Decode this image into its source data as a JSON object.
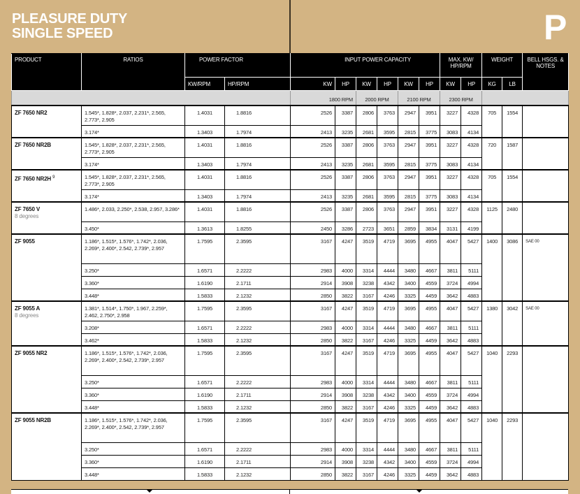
{
  "page": {
    "title_line1": "PLEASURE DUTY",
    "title_line2": "SINGLE SPEED",
    "section_letter": "P",
    "colors": {
      "background": "#d3b483",
      "header": "#000000",
      "rpm_band": "#d9d9d9"
    }
  },
  "table": {
    "headers": {
      "product": "PRODUCT",
      "ratios": "RATIOS",
      "power_factor": "POWER FACTOR",
      "input_power_capacity": "INPUT POWER CAPACITY",
      "max": "MAX. KW/ HP/RPM",
      "weight": "WEIGHT",
      "bell": "BELL HSGS. & NOTES",
      "kw_rpm": "KW/RPM",
      "hp_rpm": "HP/RPM",
      "kw": "KW",
      "hp": "HP",
      "kg": "KG",
      "lb": "LB"
    },
    "rpm_bands": [
      "1800 RPM",
      "2000 RPM",
      "2100 RPM",
      "2300 RPM"
    ],
    "products": [
      {
        "name": "ZF 7650 NR2",
        "sub": "",
        "sup": "",
        "kg": "705",
        "lb": "1554",
        "notes": "",
        "rows": [
          {
            "ratios": "1.545*, 1.828*, 2.037, 2.231*, 2.565, 2.773*, 2.905",
            "kw_rpm": "1.4031",
            "hp_rpm": "1.8816",
            "cap": [
              "2526",
              "3387",
              "2806",
              "3763",
              "2947",
              "3951",
              "3227",
              "4328"
            ]
          },
          {
            "ratios": "3.174*",
            "kw_rpm": "1.3403",
            "hp_rpm": "1.7974",
            "cap": [
              "2413",
              "3235",
              "2681",
              "3595",
              "2815",
              "3775",
              "3083",
              "4134"
            ]
          }
        ]
      },
      {
        "name": "ZF 7650 NR2B",
        "sub": "",
        "sup": "",
        "kg": "720",
        "lb": "1587",
        "notes": "",
        "rows": [
          {
            "ratios": "1.545*, 1.828*, 2.037, 2.231*, 2.565, 2.773*, 2.905",
            "kw_rpm": "1.4031",
            "hp_rpm": "1.8816",
            "cap": [
              "2526",
              "3387",
              "2806",
              "3763",
              "2947",
              "3951",
              "3227",
              "4328"
            ]
          },
          {
            "ratios": "3.174*",
            "kw_rpm": "1.3403",
            "hp_rpm": "1.7974",
            "cap": [
              "2413",
              "3235",
              "2681",
              "3595",
              "2815",
              "3775",
              "3083",
              "4134"
            ]
          }
        ]
      },
      {
        "name": "ZF 7650 NR2H",
        "sub": "",
        "sup": "9",
        "kg": "705",
        "lb": "1554",
        "notes": "",
        "rows": [
          {
            "ratios": "1.545*, 1.828*, 2.037, 2.231*, 2.565, 2.773*, 2.905",
            "kw_rpm": "1.4031",
            "hp_rpm": "1.8816",
            "cap": [
              "2526",
              "3387",
              "2806",
              "3763",
              "2947",
              "3951",
              "3227",
              "4328"
            ]
          },
          {
            "ratios": "3.174*",
            "kw_rpm": "1.3403",
            "hp_rpm": "1.7974",
            "cap": [
              "2413",
              "3235",
              "2681",
              "3595",
              "2815",
              "3775",
              "3083",
              "4134"
            ]
          }
        ]
      },
      {
        "name": "ZF 7650 V",
        "sub": "8 degrees",
        "sup": "",
        "kg": "1125",
        "lb": "2480",
        "notes": "",
        "rows": [
          {
            "ratios": "1.486*, 2.033, 2.250*, 2.538, 2.957, 3.286*",
            "kw_rpm": "1.4031",
            "hp_rpm": "1.8816",
            "cap": [
              "2526",
              "3387",
              "2806",
              "3763",
              "2947",
              "3951",
              "3227",
              "4328"
            ]
          },
          {
            "ratios": "3.450*",
            "kw_rpm": "1.3613",
            "hp_rpm": "1.8255",
            "cap": [
              "2450",
              "3286",
              "2723",
              "3651",
              "2859",
              "3834",
              "3131",
              "4199"
            ]
          }
        ]
      },
      {
        "name": "ZF 9055",
        "sub": "",
        "sup": "",
        "kg": "1400",
        "lb": "3086",
        "notes": "SAE 00",
        "rows": [
          {
            "ratios": "1.186*, 1.515*, 1.576*, 1.742*, 2.036, 2.269*, 2.400*, 2.542, 2.739*, 2.957",
            "kw_rpm": "1.7595",
            "hp_rpm": "2.3595",
            "cap": [
              "3167",
              "4247",
              "3519",
              "4719",
              "3695",
              "4955",
              "4047",
              "5427"
            ]
          },
          {
            "ratios": "3.250*",
            "kw_rpm": "1.6571",
            "hp_rpm": "2.2222",
            "cap": [
              "2983",
              "4000",
              "3314",
              "4444",
              "3480",
              "4667",
              "3811",
              "5111"
            ]
          },
          {
            "ratios": "3.360*",
            "kw_rpm": "1.6190",
            "hp_rpm": "2.1711",
            "cap": [
              "2914",
              "3908",
              "3238",
              "4342",
              "3400",
              "4559",
              "3724",
              "4994"
            ]
          },
          {
            "ratios": "3.448*",
            "kw_rpm": "1.5833",
            "hp_rpm": "2.1232",
            "cap": [
              "2850",
              "3822",
              "3167",
              "4246",
              "3325",
              "4459",
              "3642",
              "4883"
            ]
          }
        ]
      },
      {
        "name": "ZF 9055 A",
        "sub": "8 degrees",
        "sup": "",
        "kg": "1380",
        "lb": "3042",
        "notes": "SAE 00",
        "rows": [
          {
            "ratios": "1.381*, 1.514*, 1.750*, 1.967, 2.259*, 2.462, 2.750*, 2.958",
            "kw_rpm": "1.7595",
            "hp_rpm": "2.3595",
            "cap": [
              "3167",
              "4247",
              "3519",
              "4719",
              "3695",
              "4955",
              "4047",
              "5427"
            ]
          },
          {
            "ratios": "3.208*",
            "kw_rpm": "1.6571",
            "hp_rpm": "2.2222",
            "cap": [
              "2983",
              "4000",
              "3314",
              "4444",
              "3480",
              "4667",
              "3811",
              "5111"
            ]
          },
          {
            "ratios": "3.462*",
            "kw_rpm": "1.5833",
            "hp_rpm": "2.1232",
            "cap": [
              "2850",
              "3822",
              "3167",
              "4246",
              "3325",
              "4459",
              "3642",
              "4883"
            ]
          }
        ]
      },
      {
        "name": "ZF 9055 NR2",
        "sub": "",
        "sup": "",
        "kg": "1040",
        "lb": "2293",
        "notes": "",
        "rows": [
          {
            "ratios": "1.186*, 1.515*, 1.576*, 1.742*, 2.036, 2.269*, 2.400*, 2.542, 2.739*, 2.957",
            "kw_rpm": "1.7595",
            "hp_rpm": "2.3595",
            "cap": [
              "3167",
              "4247",
              "3519",
              "4719",
              "3695",
              "4955",
              "4047",
              "5427"
            ]
          },
          {
            "ratios": "3.250*",
            "kw_rpm": "1.6571",
            "hp_rpm": "2.2222",
            "cap": [
              "2983",
              "4000",
              "3314",
              "4444",
              "3480",
              "4667",
              "3811",
              "5111"
            ]
          },
          {
            "ratios": "3.360*",
            "kw_rpm": "1.6190",
            "hp_rpm": "2.1711",
            "cap": [
              "2914",
              "3908",
              "3238",
              "4342",
              "3400",
              "4559",
              "3724",
              "4994"
            ]
          },
          {
            "ratios": "3.448*",
            "kw_rpm": "1.5833",
            "hp_rpm": "2.1232",
            "cap": [
              "2850",
              "3822",
              "3167",
              "4246",
              "3325",
              "4459",
              "3642",
              "4883"
            ]
          }
        ]
      },
      {
        "name": "ZF 9055 NR2B",
        "sub": "",
        "sup": "",
        "kg": "1040",
        "lb": "2293",
        "notes": "",
        "rows": [
          {
            "ratios": "1.186*, 1.515*, 1.576*, 1.742*, 2.036, 2.269*, 2.400*, 2.542, 2.739*, 2.957",
            "kw_rpm": "1.7595",
            "hp_rpm": "2.3595",
            "cap": [
              "3167",
              "4247",
              "3519",
              "4719",
              "3695",
              "4955",
              "4047",
              "5427"
            ]
          },
          {
            "ratios": "3.250*",
            "kw_rpm": "1.6571",
            "hp_rpm": "2.2222",
            "cap": [
              "2983",
              "4000",
              "3314",
              "4444",
              "3480",
              "4667",
              "3811",
              "5111"
            ]
          },
          {
            "ratios": "3.360*",
            "kw_rpm": "1.6190",
            "hp_rpm": "2.1711",
            "cap": [
              "2914",
              "3908",
              "3238",
              "4342",
              "3400",
              "4559",
              "3724",
              "4994"
            ]
          },
          {
            "ratios": "3.448*",
            "kw_rpm": "1.5833",
            "hp_rpm": "2.1232",
            "cap": [
              "2850",
              "3822",
              "3167",
              "4246",
              "3325",
              "4459",
              "3642",
              "4883"
            ]
          }
        ]
      }
    ]
  }
}
